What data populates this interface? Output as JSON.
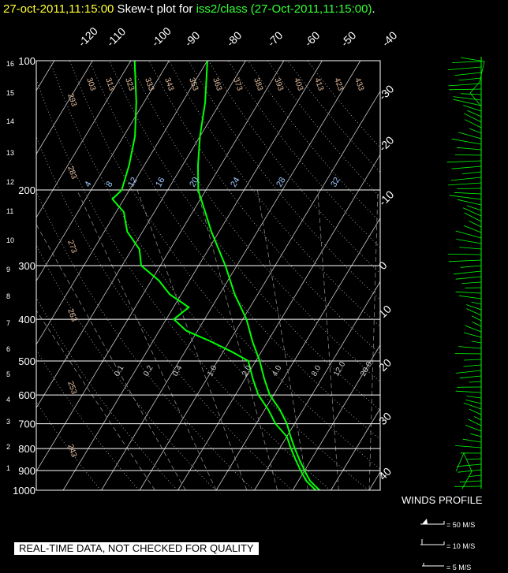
{
  "header": {
    "time": "27-oct-2011,11:15:00",
    "mid": " Skew-t plot for ",
    "station": "iss2/class (27-Oct-2011,11:15:00)",
    "dot": "."
  },
  "footer": {
    "quality": "REAL-TIME DATA, NOT CHECKED FOR QUALITY",
    "winds": "WINDS PROFILE",
    "barb50": "= 50 M/S",
    "barb10": "= 10 M/S",
    "barb5": "= 5 M/S"
  },
  "colors": {
    "temp": "#00ff00",
    "grid": "#ffffff",
    "theta": "#e8c0a0",
    "mixing": "#a0c8ff"
  },
  "chart_data": {
    "type": "line",
    "title": "Skew-t plot for iss2/class (27-Oct-2011,11:15:00)",
    "pressure_ticks": [
      100,
      200,
      300,
      400,
      500,
      600,
      700,
      800,
      900,
      1000
    ],
    "height_ticks": [
      1,
      2,
      3,
      4,
      5,
      6,
      7,
      8,
      9,
      10,
      11,
      12,
      13,
      14,
      15,
      16
    ],
    "temperature_top_ticks": [
      "-120",
      "-110",
      "-100",
      "-90",
      "-80",
      "-70",
      "-60",
      "-50",
      "-40"
    ],
    "temperature_right_ticks": [
      "-30",
      "-20",
      "-10",
      "0",
      "10",
      "20",
      "30",
      "40"
    ],
    "theta_labels": [
      "293",
      "303",
      "313",
      "323",
      "333",
      "343",
      "353",
      "363",
      "373",
      "383",
      "393",
      "403",
      "413",
      "423",
      "433",
      "283",
      "273",
      "263",
      "253",
      "243"
    ],
    "mixing_ratio_labels": [
      "4",
      "8",
      "12",
      "16",
      "20",
      "24",
      "28",
      "32"
    ],
    "lower_mixing_labels": [
      "0.1",
      "0.2",
      "0.4",
      "1.0",
      "2.0",
      "4.0",
      "8.0",
      "12.0",
      "20.0"
    ],
    "series": [
      {
        "role": "temperature",
        "points": [
          [
            1000,
            27
          ],
          [
            950,
            23
          ],
          [
            900,
            20
          ],
          [
            850,
            17
          ],
          [
            800,
            14
          ],
          [
            750,
            11
          ],
          [
            700,
            8
          ],
          [
            650,
            4
          ],
          [
            600,
            -1
          ],
          [
            550,
            -5
          ],
          [
            500,
            -9
          ],
          [
            450,
            -14
          ],
          [
            400,
            -19
          ],
          [
            350,
            -26
          ],
          [
            300,
            -33
          ],
          [
            250,
            -42
          ],
          [
            200,
            -52
          ],
          [
            175,
            -56
          ],
          [
            150,
            -60
          ],
          [
            125,
            -64
          ],
          [
            100,
            -70
          ]
        ]
      },
      {
        "role": "dewpoint",
        "points": [
          [
            1000,
            26
          ],
          [
            950,
            22
          ],
          [
            900,
            19
          ],
          [
            850,
            16
          ],
          [
            800,
            13
          ],
          [
            750,
            10
          ],
          [
            700,
            5
          ],
          [
            650,
            1
          ],
          [
            600,
            -4
          ],
          [
            550,
            -8
          ],
          [
            500,
            -12
          ],
          [
            475,
            -18
          ],
          [
            450,
            -25
          ],
          [
            425,
            -33
          ],
          [
            400,
            -38
          ],
          [
            375,
            -36
          ],
          [
            350,
            -43
          ],
          [
            325,
            -48
          ],
          [
            300,
            -55
          ],
          [
            275,
            -58
          ],
          [
            250,
            -64
          ],
          [
            225,
            -68
          ],
          [
            210,
            -73
          ],
          [
            200,
            -72
          ],
          [
            175,
            -74
          ],
          [
            150,
            -77
          ],
          [
            125,
            -82
          ],
          [
            100,
            -89
          ]
        ]
      }
    ],
    "winds_profile": {
      "title": "WINDS PROFILE"
    }
  }
}
